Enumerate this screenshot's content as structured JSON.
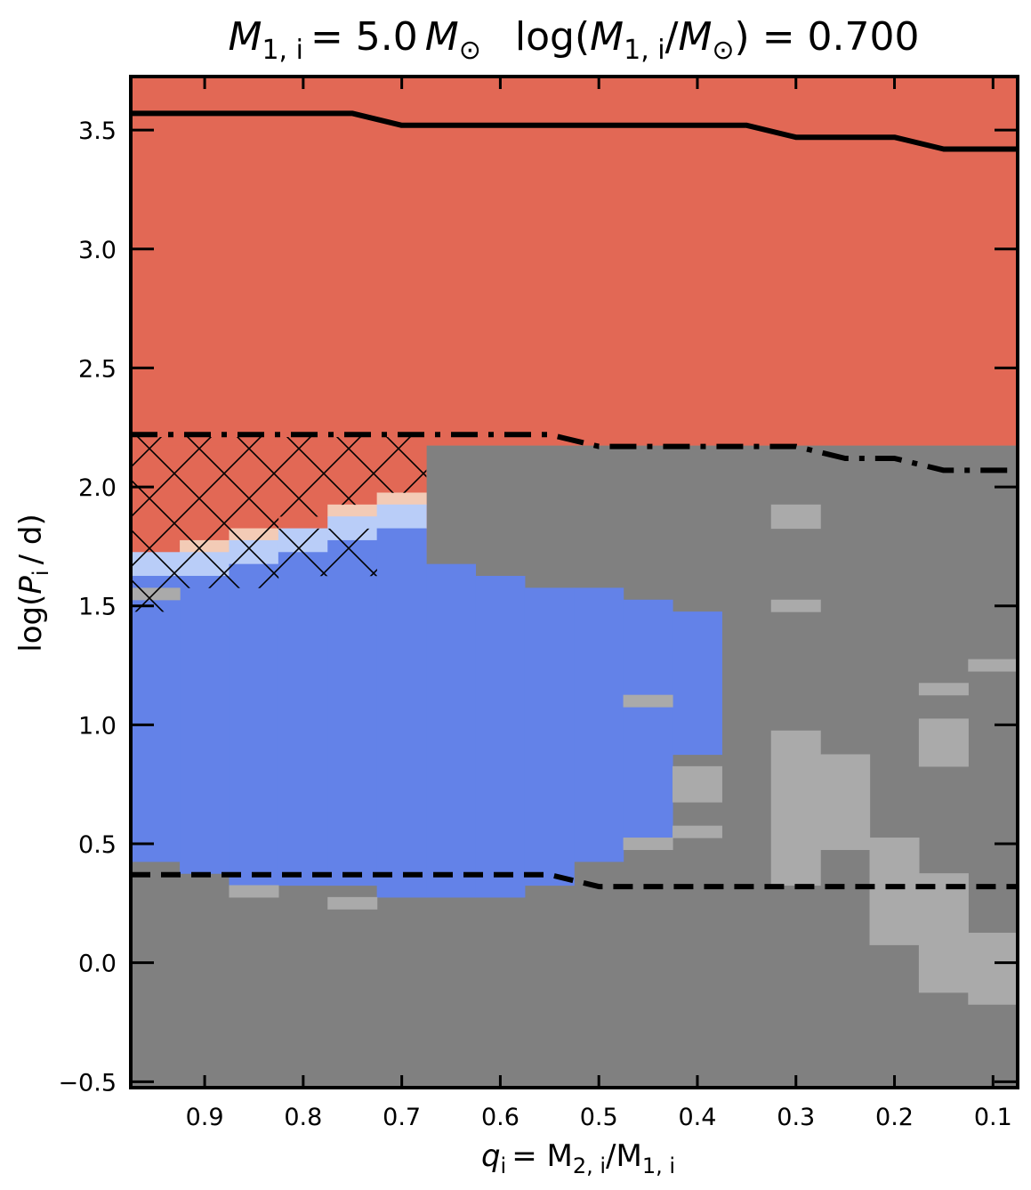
{
  "chart_data": {
    "type": "heatmap",
    "title": "M₁,ᵢ = 5.0 M⊙    log(M₁,ᵢ/M⊙) = 0.700",
    "title_parts": {
      "left": "M",
      "left_sub": "1, i",
      "left_eq": "= 5.0",
      "left_unit": "M",
      "sun": "⊙",
      "right_pre": "log(",
      "right_M": "M",
      "right_sub": "1, i",
      "right_slash": "/",
      "right_unit": "M",
      "right_post": ") = 0.700"
    },
    "xlabel_parts": {
      "q": "q",
      "sub": "i",
      "mid": "= M",
      "sub2": "2, i",
      "slash": "/M",
      "sub3": "1, i"
    },
    "ylabel_parts": {
      "pre": "log(",
      "P": "P",
      "sub": "i",
      "post": "/ d)"
    },
    "xlabel": "qi = M2,i/M1,i",
    "ylabel": "log(Pi / d)",
    "x_reversed": true,
    "xlim": [
      0.975,
      0.075
    ],
    "ylim": [
      -0.525,
      3.725
    ],
    "x_ticks": [
      0.9,
      0.8,
      0.7,
      0.6,
      0.5,
      0.4,
      0.3,
      0.2,
      0.1
    ],
    "x_tick_labels": [
      "0.9",
      "0.8",
      "0.7",
      "0.6",
      "0.5",
      "0.4",
      "0.3",
      "0.2",
      "0.1"
    ],
    "y_ticks": [
      -0.5,
      0.0,
      0.5,
      1.0,
      1.5,
      2.0,
      2.5,
      3.0,
      3.5
    ],
    "y_tick_labels": [
      "−0.5",
      "0.0",
      "0.5",
      "1.0",
      "1.5",
      "2.0",
      "2.5",
      "3.0",
      "3.5"
    ],
    "grid": false,
    "colors": {
      "background_gray": "#808080",
      "light_gray": "#aaaaaa",
      "red": "#e26855",
      "blue": "#6382e8",
      "light_blue": "#b9cdf8",
      "peach": "#f3cbb6"
    },
    "regions": [
      {
        "fill": "red",
        "q": [
          0.975,
          0.075
        ],
        "logP": [
          2.175,
          3.725
        ]
      },
      {
        "fill": "red",
        "q": [
          0.975,
          0.675
        ],
        "logP": [
          1.725,
          2.175
        ]
      },
      {
        "fill": "peach",
        "q": [
          0.925,
          0.875
        ],
        "logP": [
          1.725,
          1.775
        ]
      },
      {
        "fill": "peach",
        "q": [
          0.875,
          0.825
        ],
        "logP": [
          1.775,
          1.825
        ]
      },
      {
        "fill": "peach",
        "q": [
          0.775,
          0.725
        ],
        "logP": [
          1.875,
          1.925
        ]
      },
      {
        "fill": "peach",
        "q": [
          0.725,
          0.675
        ],
        "logP": [
          1.925,
          1.975
        ]
      },
      {
        "fill": "light_blue",
        "q": [
          0.975,
          0.925
        ],
        "logP": [
          1.625,
          1.725
        ]
      },
      {
        "fill": "light_blue",
        "q": [
          0.925,
          0.875
        ],
        "logP": [
          1.625,
          1.725
        ]
      },
      {
        "fill": "light_blue",
        "q": [
          0.875,
          0.825
        ],
        "logP": [
          1.675,
          1.775
        ]
      },
      {
        "fill": "light_blue",
        "q": [
          0.825,
          0.775
        ],
        "logP": [
          1.725,
          1.825
        ]
      },
      {
        "fill": "light_blue",
        "q": [
          0.775,
          0.725
        ],
        "logP": [
          1.775,
          1.875
        ]
      },
      {
        "fill": "light_blue",
        "q": [
          0.725,
          0.675
        ],
        "logP": [
          1.825,
          1.925
        ]
      },
      {
        "fill": "blue",
        "q": [
          0.975,
          0.925
        ],
        "logP": [
          0.425,
          1.625
        ]
      },
      {
        "fill": "blue",
        "q": [
          0.925,
          0.875
        ],
        "logP": [
          0.375,
          1.625
        ]
      },
      {
        "fill": "blue",
        "q": [
          0.875,
          0.825
        ],
        "logP": [
          0.325,
          1.675
        ]
      },
      {
        "fill": "blue",
        "q": [
          0.825,
          0.775
        ],
        "logP": [
          0.325,
          1.725
        ]
      },
      {
        "fill": "blue",
        "q": [
          0.775,
          0.725
        ],
        "logP": [
          0.325,
          1.775
        ]
      },
      {
        "fill": "blue",
        "q": [
          0.725,
          0.675
        ],
        "logP": [
          0.275,
          1.825
        ]
      },
      {
        "fill": "blue",
        "q": [
          0.675,
          0.625
        ],
        "logP": [
          0.275,
          1.675
        ]
      },
      {
        "fill": "blue",
        "q": [
          0.625,
          0.575
        ],
        "logP": [
          0.275,
          1.625
        ]
      },
      {
        "fill": "blue",
        "q": [
          0.575,
          0.525
        ],
        "logP": [
          0.325,
          1.575
        ]
      },
      {
        "fill": "blue",
        "q": [
          0.525,
          0.475
        ],
        "logP": [
          0.425,
          1.575
        ]
      },
      {
        "fill": "blue",
        "q": [
          0.475,
          0.425
        ],
        "logP": [
          0.525,
          1.525
        ]
      },
      {
        "fill": "blue",
        "q": [
          0.425,
          0.375
        ],
        "logP": [
          0.875,
          1.475
        ]
      },
      {
        "fill": "light_gray",
        "q": [
          0.975,
          0.925
        ],
        "logP": [
          1.525,
          1.575
        ]
      },
      {
        "fill": "light_gray",
        "q": [
          0.875,
          0.825
        ],
        "logP": [
          0.275,
          0.325
        ]
      },
      {
        "fill": "light_gray",
        "q": [
          0.775,
          0.725
        ],
        "logP": [
          0.225,
          0.275
        ]
      },
      {
        "fill": "light_gray",
        "q": [
          0.475,
          0.425
        ],
        "logP": [
          1.075,
          1.125
        ]
      },
      {
        "fill": "light_gray",
        "q": [
          0.475,
          0.425
        ],
        "logP": [
          0.475,
          0.525
        ]
      },
      {
        "fill": "light_gray",
        "q": [
          0.425,
          0.375
        ],
        "logP": [
          0.675,
          0.825
        ]
      },
      {
        "fill": "light_gray",
        "q": [
          0.425,
          0.375
        ],
        "logP": [
          0.525,
          0.575
        ]
      },
      {
        "fill": "light_gray",
        "q": [
          0.325,
          0.275
        ],
        "logP": [
          1.825,
          1.925
        ]
      },
      {
        "fill": "light_gray",
        "q": [
          0.325,
          0.275
        ],
        "logP": [
          1.475,
          1.525
        ]
      },
      {
        "fill": "light_gray",
        "q": [
          0.325,
          0.275
        ],
        "logP": [
          0.325,
          0.975
        ]
      },
      {
        "fill": "light_gray",
        "q": [
          0.275,
          0.225
        ],
        "logP": [
          0.475,
          0.875
        ]
      },
      {
        "fill": "light_gray",
        "q": [
          0.225,
          0.175
        ],
        "logP": [
          0.075,
          0.525
        ]
      },
      {
        "fill": "light_gray",
        "q": [
          0.175,
          0.125
        ],
        "logP": [
          1.125,
          1.175
        ]
      },
      {
        "fill": "light_gray",
        "q": [
          0.175,
          0.125
        ],
        "logP": [
          0.825,
          1.025
        ]
      },
      {
        "fill": "light_gray",
        "q": [
          0.175,
          0.125
        ],
        "logP": [
          0.175,
          0.375
        ]
      },
      {
        "fill": "light_gray",
        "q": [
          0.175,
          0.125
        ],
        "logP": [
          -0.125,
          0.175
        ]
      },
      {
        "fill": "light_gray",
        "q": [
          0.125,
          0.075
        ],
        "logP": [
          1.225,
          1.275
        ]
      },
      {
        "fill": "light_gray",
        "q": [
          0.125,
          0.075
        ],
        "logP": [
          -0.175,
          0.125
        ]
      }
    ],
    "hatched_region": {
      "pattern": "cross",
      "polygon": [
        [
          0.975,
          2.21
        ],
        [
          0.675,
          2.21
        ],
        [
          0.675,
          1.975
        ],
        [
          0.725,
          1.975
        ],
        [
          0.725,
          1.925
        ],
        [
          0.775,
          1.925
        ],
        [
          0.775,
          1.875
        ],
        [
          0.825,
          1.875
        ],
        [
          0.825,
          1.825
        ],
        [
          0.725,
          1.825
        ],
        [
          0.725,
          1.625
        ],
        [
          0.825,
          1.625
        ],
        [
          0.825,
          1.575
        ],
        [
          0.925,
          1.575
        ],
        [
          0.925,
          1.475
        ],
        [
          0.975,
          1.475
        ]
      ]
    },
    "lines": [
      {
        "style": "solid",
        "x": [
          0.975,
          0.75,
          0.7,
          0.35,
          0.3,
          0.2,
          0.15,
          0.075
        ],
        "y": [
          3.57,
          3.57,
          3.52,
          3.52,
          3.47,
          3.47,
          3.42,
          3.42
        ]
      },
      {
        "style": "dashdot",
        "x": [
          0.975,
          0.55,
          0.5,
          0.3,
          0.25,
          0.2,
          0.15,
          0.075
        ],
        "y": [
          2.22,
          2.22,
          2.17,
          2.17,
          2.12,
          2.12,
          2.07,
          2.07
        ]
      },
      {
        "style": "dashed",
        "x": [
          0.975,
          0.55,
          0.5,
          0.075
        ],
        "y": [
          0.37,
          0.37,
          0.32,
          0.32
        ]
      }
    ]
  }
}
